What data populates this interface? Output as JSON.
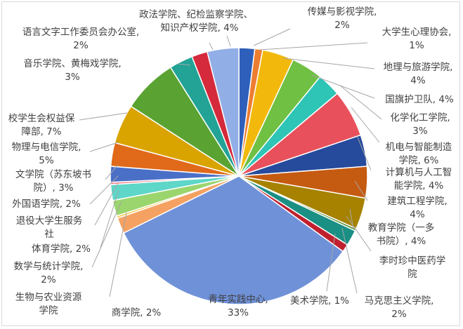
{
  "chart_data": {
    "type": "pie",
    "title": "",
    "legend": "none",
    "unit": "%",
    "slices": [
      {
        "name": "传媒与影视学院",
        "value": 2,
        "label": "2%",
        "color": "#2e5fba"
      },
      {
        "name": "大学生心理协会",
        "value": 1,
        "label": "1%",
        "color": "#ed7d31"
      },
      {
        "name": "地理与旅游学院",
        "value": 4,
        "label": "4%",
        "color": "#f2b90c"
      },
      {
        "name": "国旗护卫队",
        "value": 4,
        "label": "4%",
        "color": "#70c043"
      },
      {
        "name": "化学化工学院",
        "value": 3,
        "label": "3%",
        "color": "#2ec4b6"
      },
      {
        "name": "机电与智能制造学院",
        "value": 6,
        "label": "6%",
        "color": "#e8505b"
      },
      {
        "name": "计算机与人工智能学院",
        "value": 4,
        "label": "4%",
        "color": "#264a9c"
      },
      {
        "name": "建筑工程学院",
        "value": 4,
        "label": "4%",
        "color": "#c55a11"
      },
      {
        "name": "教育学院（一多书院）",
        "value": 4,
        "label": "4%",
        "color": "#a68200"
      },
      {
        "name": "李时珍中医药学院",
        "value": 0.3,
        "label": "",
        "color": "#4d8a2b"
      },
      {
        "name": "马克思主义学院",
        "value": 2,
        "label": "2%",
        "color": "#1a8f84"
      },
      {
        "name": "美术学院",
        "value": 1,
        "label": "1%",
        "color": "#c0202e"
      },
      {
        "name": "青年实践中心",
        "value": 33,
        "label": "33%",
        "color": "#6f91d8"
      },
      {
        "name": "商学院",
        "value": 2,
        "label": "2%",
        "color": "#f4a162"
      },
      {
        "name": "生物与农业资源学院",
        "value": 0.3,
        "label": "",
        "color": "#f7c948"
      },
      {
        "name": "数学与统计学院",
        "value": 2,
        "label": "2%",
        "color": "#9bd56e"
      },
      {
        "name": "体育学院",
        "value": 2,
        "label": "2%",
        "color": "#5ed6c8"
      },
      {
        "name": "退役大学生服务社",
        "value": 0.3,
        "label": "",
        "color": "#f08a92"
      },
      {
        "name": "外国语学院",
        "value": 2,
        "label": "2%",
        "color": "#4a6fc7"
      },
      {
        "name": "文学院（苏东坡书院）",
        "value": 3,
        "label": "3%",
        "color": "#e0691a"
      },
      {
        "name": "物理与电信学院",
        "value": 5,
        "label": "5%",
        "color": "#d9a300"
      },
      {
        "name": "校学生会权益保障部",
        "value": 7,
        "label": "7%",
        "color": "#5aa332"
      },
      {
        "name": "音乐学院、黄梅戏学院",
        "value": 3,
        "label": "3%",
        "color": "#22a396"
      },
      {
        "name": "语言文字工作委员会办公室",
        "value": 2,
        "label": "2%",
        "color": "#d42a3b"
      },
      {
        "name": "政法学院、纪检监察学院、知识产权学院",
        "value": 4,
        "label": "4%",
        "color": "#92aee6"
      }
    ]
  },
  "labels": [
    {
      "line1": "政法学院、纪检监察学院、",
      "line2": "知识产权学院, 4%"
    },
    {
      "line1": "传媒与影视学院,",
      "line2": "2%"
    },
    {
      "line1": "语言文字工作委员会办公室,",
      "line2": "2%"
    },
    {
      "line1": "大学生心理协会,",
      "line2": "1%"
    },
    {
      "line1": "音乐学院、黄梅戏学院,",
      "line2": "3%"
    },
    {
      "line1": "地理与旅游学院,",
      "line2": "4%"
    },
    {
      "line1": "国旗护卫队, 4%",
      "line2": ""
    },
    {
      "line1": "校学生会权益保",
      "line2": "障部, 7%"
    },
    {
      "line1": "化学化工学院,",
      "line2": "3%"
    },
    {
      "line1": "物理与电信学院,",
      "line2": "5%"
    },
    {
      "line1": "机电与智能制造",
      "line2": "学院, 6%"
    },
    {
      "line1": "文学院（苏东坡书",
      "line2": "院）, 3%"
    },
    {
      "line1": "计算机与人工智",
      "line2": "能学院, 4%"
    },
    {
      "line1": "外国语学院, 2%",
      "line2": ""
    },
    {
      "line1": "建筑工程学院,",
      "line2": "4%"
    },
    {
      "line1": "退役大学生服务",
      "line2": "社"
    },
    {
      "line1": "教育学院（一多",
      "line2": "书院）, 4%"
    },
    {
      "line1": "体育学院, 2%",
      "line2": ""
    },
    {
      "line1": "李时珍中医药学",
      "line2": "院"
    },
    {
      "line1": "数学与统计学院,",
      "line2": "2%"
    },
    {
      "line1": "生物与农业资源",
      "line2": "学院"
    },
    {
      "line1": "美术学院, 1%",
      "line2": ""
    },
    {
      "line1": "马克思主义学院,",
      "line2": "2%"
    },
    {
      "line1": "商学院, 2%",
      "line2": ""
    },
    {
      "line1": "青年实践中心,",
      "line2": "33%"
    }
  ]
}
